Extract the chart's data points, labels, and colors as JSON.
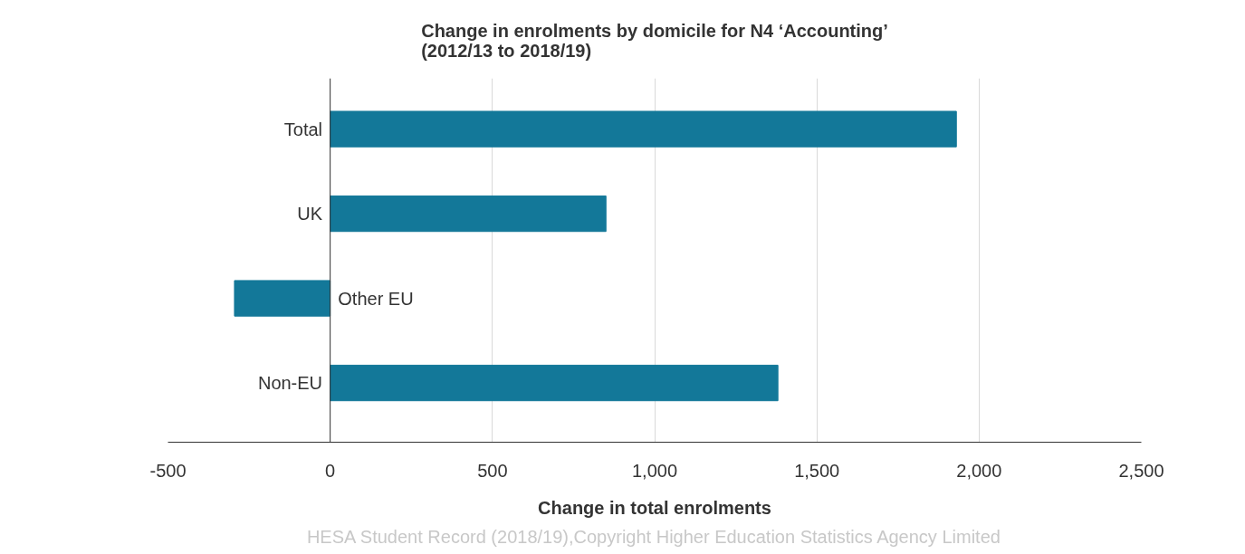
{
  "chart_data": {
    "type": "bar",
    "orientation": "horizontal",
    "title": "Change in enrolments by domicile for N4 ‘Accounting’\n(2012/13 to 2018/19)",
    "xlabel": "Change in total enrolments",
    "categories": [
      "Total",
      "UK",
      "Other EU",
      "Non-EU"
    ],
    "values": [
      1930,
      850,
      -295,
      1380
    ],
    "color": "#137899",
    "xlim": [
      -500,
      2500
    ],
    "xticks": [
      {
        "value": -500,
        "label": "-500"
      },
      0,
      500,
      {
        "value": 1000,
        "label": "1,000"
      },
      {
        "value": 1500,
        "label": "1,500"
      },
      {
        "value": 2000,
        "label": "2,000"
      },
      {
        "value": 2500,
        "label": "2,500"
      }
    ],
    "grid": "x",
    "tick_labels": "x",
    "annotations": [
      "HESA Student Record (2018/19),Copyright Higher Education Statistics Agency Limited"
    ]
  }
}
